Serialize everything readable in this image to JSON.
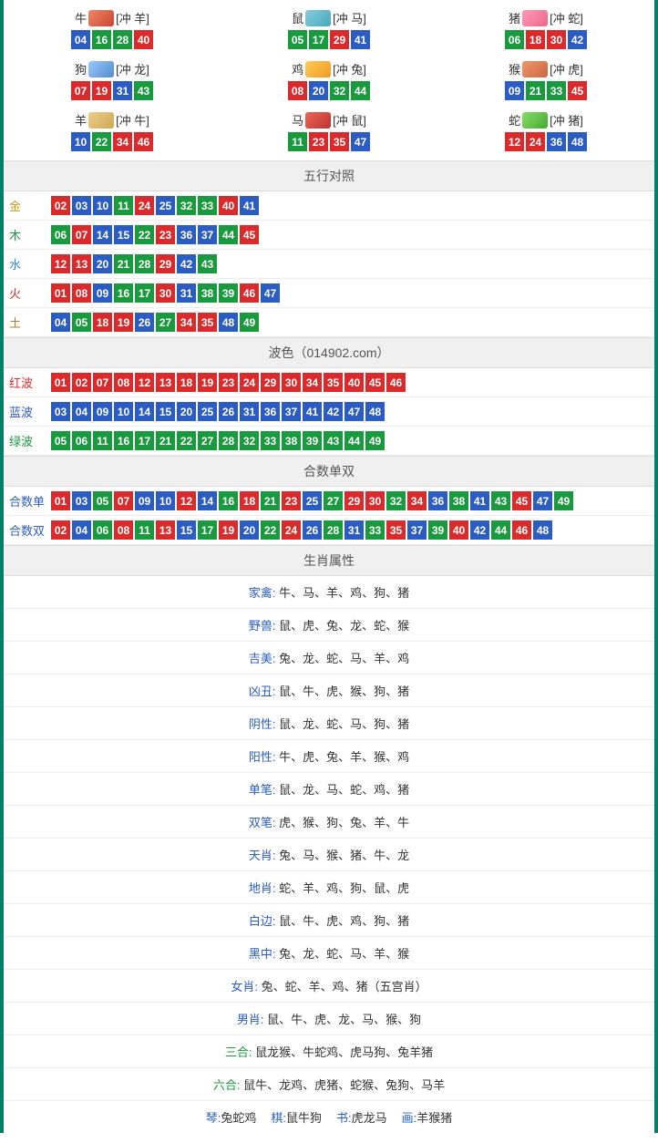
{
  "colors": {
    "red": "#d92b2b",
    "blue": "#2b5cc2",
    "green": "#1a9a3e",
    "frame": "#008066"
  },
  "zodiac_grid": [
    {
      "name": "牛",
      "clash": "[冲 羊]",
      "icon_bg": "linear-gradient(135deg,#e86,#c43)",
      "balls": [
        {
          "n": "04",
          "c": "blue"
        },
        {
          "n": "16",
          "c": "green"
        },
        {
          "n": "28",
          "c": "green"
        },
        {
          "n": "40",
          "c": "red"
        }
      ]
    },
    {
      "name": "鼠",
      "clash": "[冲 马]",
      "icon_bg": "linear-gradient(135deg,#8cd,#4ab)",
      "balls": [
        {
          "n": "05",
          "c": "green"
        },
        {
          "n": "17",
          "c": "green"
        },
        {
          "n": "29",
          "c": "red"
        },
        {
          "n": "41",
          "c": "blue"
        }
      ]
    },
    {
      "name": "猪",
      "clash": "[冲 蛇]",
      "icon_bg": "linear-gradient(135deg,#f9b,#e68)",
      "balls": [
        {
          "n": "06",
          "c": "green"
        },
        {
          "n": "18",
          "c": "red"
        },
        {
          "n": "30",
          "c": "red"
        },
        {
          "n": "42",
          "c": "blue"
        }
      ]
    },
    {
      "name": "狗",
      "clash": "[冲 龙]",
      "icon_bg": "linear-gradient(135deg,#9cf,#58c)",
      "balls": [
        {
          "n": "07",
          "c": "red"
        },
        {
          "n": "19",
          "c": "red"
        },
        {
          "n": "31",
          "c": "blue"
        },
        {
          "n": "43",
          "c": "green"
        }
      ]
    },
    {
      "name": "鸡",
      "clash": "[冲 兔]",
      "icon_bg": "linear-gradient(135deg,#fc5,#e92)",
      "balls": [
        {
          "n": "08",
          "c": "red"
        },
        {
          "n": "20",
          "c": "blue"
        },
        {
          "n": "32",
          "c": "green"
        },
        {
          "n": "44",
          "c": "green"
        }
      ]
    },
    {
      "name": "猴",
      "clash": "[冲 虎]",
      "icon_bg": "linear-gradient(135deg,#e96,#c64)",
      "balls": [
        {
          "n": "09",
          "c": "blue"
        },
        {
          "n": "21",
          "c": "green"
        },
        {
          "n": "33",
          "c": "green"
        },
        {
          "n": "45",
          "c": "red"
        }
      ]
    },
    {
      "name": "羊",
      "clash": "[冲 牛]",
      "icon_bg": "linear-gradient(135deg,#ec8,#ca5)",
      "balls": [
        {
          "n": "10",
          "c": "blue"
        },
        {
          "n": "22",
          "c": "green"
        },
        {
          "n": "34",
          "c": "red"
        },
        {
          "n": "46",
          "c": "red"
        }
      ]
    },
    {
      "name": "马",
      "clash": "[冲 鼠]",
      "icon_bg": "linear-gradient(135deg,#e65,#b33)",
      "balls": [
        {
          "n": "11",
          "c": "green"
        },
        {
          "n": "23",
          "c": "red"
        },
        {
          "n": "35",
          "c": "red"
        },
        {
          "n": "47",
          "c": "blue"
        }
      ]
    },
    {
      "name": "蛇",
      "clash": "[冲 猪]",
      "icon_bg": "linear-gradient(135deg,#8d6,#4a3)",
      "balls": [
        {
          "n": "12",
          "c": "red"
        },
        {
          "n": "24",
          "c": "red"
        },
        {
          "n": "36",
          "c": "blue"
        },
        {
          "n": "48",
          "c": "blue"
        }
      ]
    }
  ],
  "wuxing": {
    "header": "五行对照",
    "rows": [
      {
        "label": "金",
        "label_class": "lbl-gold",
        "balls": [
          {
            "n": "02",
            "c": "red"
          },
          {
            "n": "03",
            "c": "blue"
          },
          {
            "n": "10",
            "c": "blue"
          },
          {
            "n": "11",
            "c": "green"
          },
          {
            "n": "24",
            "c": "red"
          },
          {
            "n": "25",
            "c": "blue"
          },
          {
            "n": "32",
            "c": "green"
          },
          {
            "n": "33",
            "c": "green"
          },
          {
            "n": "40",
            "c": "red"
          },
          {
            "n": "41",
            "c": "blue"
          }
        ]
      },
      {
        "label": "木",
        "label_class": "lbl-wood",
        "balls": [
          {
            "n": "06",
            "c": "green"
          },
          {
            "n": "07",
            "c": "red"
          },
          {
            "n": "14",
            "c": "blue"
          },
          {
            "n": "15",
            "c": "blue"
          },
          {
            "n": "22",
            "c": "green"
          },
          {
            "n": "23",
            "c": "red"
          },
          {
            "n": "36",
            "c": "blue"
          },
          {
            "n": "37",
            "c": "blue"
          },
          {
            "n": "44",
            "c": "green"
          },
          {
            "n": "45",
            "c": "red"
          }
        ]
      },
      {
        "label": "水",
        "label_class": "lbl-water",
        "balls": [
          {
            "n": "12",
            "c": "red"
          },
          {
            "n": "13",
            "c": "red"
          },
          {
            "n": "20",
            "c": "blue"
          },
          {
            "n": "21",
            "c": "green"
          },
          {
            "n": "28",
            "c": "green"
          },
          {
            "n": "29",
            "c": "red"
          },
          {
            "n": "42",
            "c": "blue"
          },
          {
            "n": "43",
            "c": "green"
          }
        ]
      },
      {
        "label": "火",
        "label_class": "lbl-fire",
        "balls": [
          {
            "n": "01",
            "c": "red"
          },
          {
            "n": "08",
            "c": "red"
          },
          {
            "n": "09",
            "c": "blue"
          },
          {
            "n": "16",
            "c": "green"
          },
          {
            "n": "17",
            "c": "green"
          },
          {
            "n": "30",
            "c": "red"
          },
          {
            "n": "31",
            "c": "blue"
          },
          {
            "n": "38",
            "c": "green"
          },
          {
            "n": "39",
            "c": "green"
          },
          {
            "n": "46",
            "c": "red"
          },
          {
            "n": "47",
            "c": "blue"
          }
        ]
      },
      {
        "label": "土",
        "label_class": "lbl-earth",
        "balls": [
          {
            "n": "04",
            "c": "blue"
          },
          {
            "n": "05",
            "c": "green"
          },
          {
            "n": "18",
            "c": "red"
          },
          {
            "n": "19",
            "c": "red"
          },
          {
            "n": "26",
            "c": "blue"
          },
          {
            "n": "27",
            "c": "green"
          },
          {
            "n": "34",
            "c": "red"
          },
          {
            "n": "35",
            "c": "red"
          },
          {
            "n": "48",
            "c": "blue"
          },
          {
            "n": "49",
            "c": "green"
          }
        ]
      }
    ]
  },
  "bose": {
    "header": "波色（014902.com）",
    "rows": [
      {
        "label": "红波",
        "label_class": "lbl-redwave",
        "balls": [
          {
            "n": "01",
            "c": "red"
          },
          {
            "n": "02",
            "c": "red"
          },
          {
            "n": "07",
            "c": "red"
          },
          {
            "n": "08",
            "c": "red"
          },
          {
            "n": "12",
            "c": "red"
          },
          {
            "n": "13",
            "c": "red"
          },
          {
            "n": "18",
            "c": "red"
          },
          {
            "n": "19",
            "c": "red"
          },
          {
            "n": "23",
            "c": "red"
          },
          {
            "n": "24",
            "c": "red"
          },
          {
            "n": "29",
            "c": "red"
          },
          {
            "n": "30",
            "c": "red"
          },
          {
            "n": "34",
            "c": "red"
          },
          {
            "n": "35",
            "c": "red"
          },
          {
            "n": "40",
            "c": "red"
          },
          {
            "n": "45",
            "c": "red"
          },
          {
            "n": "46",
            "c": "red"
          }
        ]
      },
      {
        "label": "蓝波",
        "label_class": "lbl-bluewave",
        "balls": [
          {
            "n": "03",
            "c": "blue"
          },
          {
            "n": "04",
            "c": "blue"
          },
          {
            "n": "09",
            "c": "blue"
          },
          {
            "n": "10",
            "c": "blue"
          },
          {
            "n": "14",
            "c": "blue"
          },
          {
            "n": "15",
            "c": "blue"
          },
          {
            "n": "20",
            "c": "blue"
          },
          {
            "n": "25",
            "c": "blue"
          },
          {
            "n": "26",
            "c": "blue"
          },
          {
            "n": "31",
            "c": "blue"
          },
          {
            "n": "36",
            "c": "blue"
          },
          {
            "n": "37",
            "c": "blue"
          },
          {
            "n": "41",
            "c": "blue"
          },
          {
            "n": "42",
            "c": "blue"
          },
          {
            "n": "47",
            "c": "blue"
          },
          {
            "n": "48",
            "c": "blue"
          }
        ]
      },
      {
        "label": "绿波",
        "label_class": "lbl-greenwave",
        "balls": [
          {
            "n": "05",
            "c": "green"
          },
          {
            "n": "06",
            "c": "green"
          },
          {
            "n": "11",
            "c": "green"
          },
          {
            "n": "16",
            "c": "green"
          },
          {
            "n": "17",
            "c": "green"
          },
          {
            "n": "21",
            "c": "green"
          },
          {
            "n": "22",
            "c": "green"
          },
          {
            "n": "27",
            "c": "green"
          },
          {
            "n": "28",
            "c": "green"
          },
          {
            "n": "32",
            "c": "green"
          },
          {
            "n": "33",
            "c": "green"
          },
          {
            "n": "38",
            "c": "green"
          },
          {
            "n": "39",
            "c": "green"
          },
          {
            "n": "43",
            "c": "green"
          },
          {
            "n": "44",
            "c": "green"
          },
          {
            "n": "49",
            "c": "green"
          }
        ]
      }
    ]
  },
  "heshu": {
    "header": "合数单双",
    "rows": [
      {
        "label": "合数单",
        "label_class": "lbl-linklike",
        "balls": [
          {
            "n": "01",
            "c": "red"
          },
          {
            "n": "03",
            "c": "blue"
          },
          {
            "n": "05",
            "c": "green"
          },
          {
            "n": "07",
            "c": "red"
          },
          {
            "n": "09",
            "c": "blue"
          },
          {
            "n": "10",
            "c": "blue"
          },
          {
            "n": "12",
            "c": "red"
          },
          {
            "n": "14",
            "c": "blue"
          },
          {
            "n": "16",
            "c": "green"
          },
          {
            "n": "18",
            "c": "red"
          },
          {
            "n": "21",
            "c": "green"
          },
          {
            "n": "23",
            "c": "red"
          },
          {
            "n": "25",
            "c": "blue"
          },
          {
            "n": "27",
            "c": "green"
          },
          {
            "n": "29",
            "c": "red"
          },
          {
            "n": "30",
            "c": "red"
          },
          {
            "n": "32",
            "c": "green"
          },
          {
            "n": "34",
            "c": "red"
          },
          {
            "n": "36",
            "c": "blue"
          },
          {
            "n": "38",
            "c": "green"
          },
          {
            "n": "41",
            "c": "blue"
          },
          {
            "n": "43",
            "c": "green"
          },
          {
            "n": "45",
            "c": "red"
          },
          {
            "n": "47",
            "c": "blue"
          },
          {
            "n": "49",
            "c": "green"
          }
        ]
      },
      {
        "label": "合数双",
        "label_class": "lbl-linklike",
        "balls": [
          {
            "n": "02",
            "c": "red"
          },
          {
            "n": "04",
            "c": "blue"
          },
          {
            "n": "06",
            "c": "green"
          },
          {
            "n": "08",
            "c": "red"
          },
          {
            "n": "11",
            "c": "green"
          },
          {
            "n": "13",
            "c": "red"
          },
          {
            "n": "15",
            "c": "blue"
          },
          {
            "n": "17",
            "c": "green"
          },
          {
            "n": "19",
            "c": "red"
          },
          {
            "n": "20",
            "c": "blue"
          },
          {
            "n": "22",
            "c": "green"
          },
          {
            "n": "24",
            "c": "red"
          },
          {
            "n": "26",
            "c": "blue"
          },
          {
            "n": "28",
            "c": "green"
          },
          {
            "n": "31",
            "c": "blue"
          },
          {
            "n": "33",
            "c": "green"
          },
          {
            "n": "35",
            "c": "red"
          },
          {
            "n": "37",
            "c": "blue"
          },
          {
            "n": "39",
            "c": "green"
          },
          {
            "n": "40",
            "c": "red"
          },
          {
            "n": "42",
            "c": "blue"
          },
          {
            "n": "44",
            "c": "green"
          },
          {
            "n": "46",
            "c": "red"
          },
          {
            "n": "48",
            "c": "blue"
          }
        ]
      }
    ]
  },
  "shengxiao": {
    "header": "生肖属性",
    "rows": [
      {
        "key": "家禽:",
        "val": "牛、马、羊、鸡、狗、猪"
      },
      {
        "key": "野兽:",
        "val": "鼠、虎、兔、龙、蛇、猴"
      },
      {
        "key": "吉美:",
        "val": "兔、龙、蛇、马、羊、鸡"
      },
      {
        "key": "凶丑:",
        "val": "鼠、牛、虎、猴、狗、猪"
      },
      {
        "key": "阴性:",
        "val": "鼠、龙、蛇、马、狗、猪"
      },
      {
        "key": "阳性:",
        "val": "牛、虎、兔、羊、猴、鸡"
      },
      {
        "key": "单笔:",
        "val": "鼠、龙、马、蛇、鸡、猪"
      },
      {
        "key": "双笔:",
        "val": "虎、猴、狗、兔、羊、牛"
      },
      {
        "key": "天肖:",
        "val": "兔、马、猴、猪、牛、龙"
      },
      {
        "key": "地肖:",
        "val": "蛇、羊、鸡、狗、鼠、虎"
      },
      {
        "key": "白边:",
        "val": "鼠、牛、虎、鸡、狗、猪"
      },
      {
        "key": "黑中:",
        "val": "兔、龙、蛇、马、羊、猴"
      },
      {
        "key": "女肖:",
        "val": "兔、蛇、羊、鸡、猪（五宫肖）"
      },
      {
        "key": "男肖:",
        "val": "鼠、牛、虎、龙、马、猴、狗"
      },
      {
        "key": "三合:",
        "key_class": "green-key",
        "val": "鼠龙猴、牛蛇鸡、虎马狗、兔羊猪"
      },
      {
        "key": "六合:",
        "key_class": "green-key",
        "val": "鼠牛、龙鸡、虎猪、蛇猴、兔狗、马羊"
      }
    ]
  },
  "bottom": {
    "segments": [
      {
        "k": "琴:",
        "v": "兔蛇鸡"
      },
      {
        "k": "棋:",
        "v": "鼠牛狗"
      },
      {
        "k": "书:",
        "v": "虎龙马"
      },
      {
        "k": "画:",
        "v": "羊猴猪"
      }
    ]
  }
}
